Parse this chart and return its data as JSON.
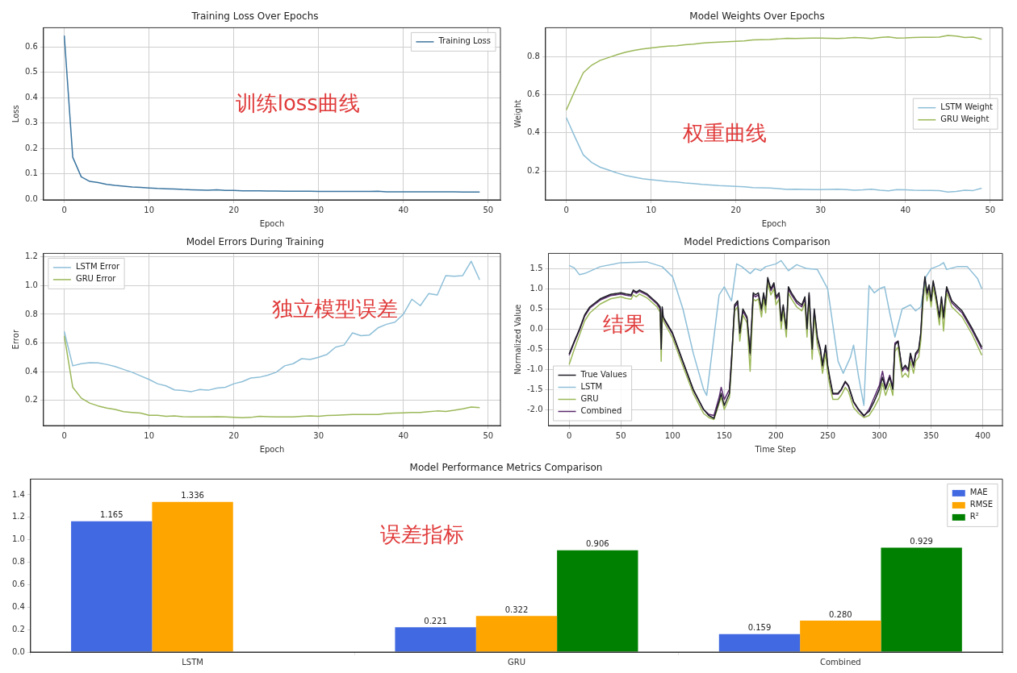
{
  "chart_data": [
    {
      "type": "line",
      "title": "Training Loss Over Epochs",
      "xlabel": "Epoch",
      "ylabel": "Loss",
      "annotations": [
        "训练loss曲线"
      ],
      "grid": true,
      "legend": "top right",
      "x": [
        0,
        1,
        2,
        3,
        4,
        5,
        6,
        7,
        8,
        9,
        10,
        11,
        12,
        13,
        14,
        15,
        16,
        17,
        18,
        19,
        20,
        21,
        22,
        23,
        24,
        25,
        26,
        27,
        28,
        29,
        30,
        31,
        32,
        33,
        34,
        35,
        36,
        37,
        38,
        39,
        40,
        41,
        42,
        43,
        44,
        45,
        46,
        47,
        48,
        49
      ],
      "xlim": [
        -2.45,
        51.45
      ],
      "xticks": [
        0,
        10,
        20,
        30,
        40,
        50
      ],
      "ylim": [
        -0.003,
        0.676
      ],
      "yticks": [
        {
          "value": 0,
          "label": "0.0"
        },
        0.1,
        0.2,
        0.3,
        0.4,
        0.5,
        0.6
      ],
      "series": [
        {
          "name": "Training Loss",
          "color": "#3b75a0",
          "values": [
            0.645,
            0.165,
            0.088,
            0.07,
            0.065,
            0.058,
            0.054,
            0.051,
            0.048,
            0.046,
            0.044,
            0.042,
            0.041,
            0.04,
            0.038,
            0.037,
            0.036,
            0.035,
            0.037,
            0.034,
            0.034,
            0.033,
            0.033,
            0.033,
            0.032,
            0.032,
            0.031,
            0.031,
            0.031,
            0.031,
            0.03,
            0.03,
            0.03,
            0.03,
            0.03,
            0.03,
            0.03,
            0.031,
            0.029,
            0.029,
            0.029,
            0.029,
            0.029,
            0.029,
            0.029,
            0.029,
            0.029,
            0.028,
            0.028,
            0.028
          ]
        }
      ]
    },
    {
      "type": "line",
      "title": "Model Weights Over Epochs",
      "xlabel": "Epoch",
      "ylabel": "Weight",
      "annotations": [
        "权重曲线"
      ],
      "grid": true,
      "legend": "right",
      "x": [
        0,
        1,
        2,
        3,
        4,
        5,
        6,
        7,
        8,
        9,
        10,
        11,
        12,
        13,
        14,
        15,
        16,
        17,
        18,
        19,
        20,
        21,
        22,
        23,
        24,
        25,
        26,
        27,
        28,
        29,
        30,
        31,
        32,
        33,
        34,
        35,
        36,
        37,
        38,
        39,
        40,
        41,
        42,
        43,
        44,
        45,
        46,
        47,
        48,
        49
      ],
      "xlim": [
        -2.45,
        51.45
      ],
      "xticks": [
        0,
        10,
        20,
        30,
        40,
        50
      ],
      "ylim": [
        0.049,
        0.951
      ],
      "yticks": [
        0.2,
        0.4,
        0.6,
        0.8
      ],
      "series": [
        {
          "name": "LSTM Weight",
          "color": "#8ebfd8",
          "values": [
            0.48,
            0.38,
            0.285,
            0.245,
            0.22,
            0.205,
            0.19,
            0.177,
            0.168,
            0.16,
            0.155,
            0.15,
            0.145,
            0.143,
            0.138,
            0.135,
            0.13,
            0.127,
            0.124,
            0.122,
            0.12,
            0.118,
            0.113,
            0.112,
            0.111,
            0.108,
            0.104,
            0.105,
            0.104,
            0.103,
            0.103,
            0.104,
            0.105,
            0.103,
            0.1,
            0.102,
            0.105,
            0.1,
            0.097,
            0.103,
            0.102,
            0.1,
            0.099,
            0.099,
            0.098,
            0.09,
            0.093,
            0.1,
            0.098,
            0.11
          ]
        },
        {
          "name": "GRU Weight",
          "color": "#9bb858",
          "values": [
            0.52,
            0.62,
            0.715,
            0.755,
            0.78,
            0.795,
            0.81,
            0.823,
            0.832,
            0.84,
            0.845,
            0.85,
            0.855,
            0.857,
            0.862,
            0.865,
            0.87,
            0.873,
            0.876,
            0.878,
            0.88,
            0.882,
            0.887,
            0.888,
            0.889,
            0.892,
            0.896,
            0.895,
            0.896,
            0.897,
            0.897,
            0.896,
            0.895,
            0.897,
            0.9,
            0.898,
            0.895,
            0.9,
            0.903,
            0.897,
            0.898,
            0.9,
            0.901,
            0.901,
            0.902,
            0.91,
            0.907,
            0.9,
            0.902,
            0.89
          ]
        }
      ]
    },
    {
      "type": "line",
      "title": "Model Errors During Training",
      "xlabel": "Epoch",
      "ylabel": "Error",
      "annotations": [
        "独立模型误差"
      ],
      "grid": true,
      "legend": "top left",
      "x": [
        0,
        1,
        2,
        3,
        4,
        5,
        6,
        7,
        8,
        9,
        10,
        11,
        12,
        13,
        14,
        15,
        16,
        17,
        18,
        19,
        20,
        21,
        22,
        23,
        24,
        25,
        26,
        27,
        28,
        29,
        30,
        31,
        32,
        33,
        34,
        35,
        36,
        37,
        38,
        39,
        40,
        41,
        42,
        43,
        44,
        45,
        46,
        47,
        48,
        49
      ],
      "xlim": [
        -2.45,
        51.45
      ],
      "xticks": [
        0,
        10,
        20,
        30,
        40,
        50
      ],
      "ylim": [
        0.023,
        1.225
      ],
      "yticks": [
        0.2,
        0.4,
        0.6,
        0.8,
        {
          "value": 1,
          "label": "1.0"
        },
        1.2
      ],
      "series": [
        {
          "name": "LSTM Error",
          "color": "#8ebfd8",
          "values": [
            0.68,
            0.44,
            0.455,
            0.462,
            0.46,
            0.45,
            0.435,
            0.415,
            0.395,
            0.37,
            0.345,
            0.315,
            0.3,
            0.272,
            0.268,
            0.26,
            0.275,
            0.27,
            0.285,
            0.29,
            0.315,
            0.33,
            0.355,
            0.36,
            0.375,
            0.395,
            0.44,
            0.455,
            0.49,
            0.485,
            0.5,
            0.52,
            0.57,
            0.585,
            0.67,
            0.65,
            0.655,
            0.705,
            0.73,
            0.745,
            0.8,
            0.905,
            0.86,
            0.945,
            0.935,
            1.07,
            1.065,
            1.07,
            1.17,
            1.04
          ]
        },
        {
          "name": "GRU Error",
          "color": "#9bb858",
          "values": [
            0.65,
            0.29,
            0.215,
            0.18,
            0.16,
            0.145,
            0.135,
            0.12,
            0.115,
            0.11,
            0.095,
            0.095,
            0.088,
            0.09,
            0.085,
            0.083,
            0.083,
            0.083,
            0.085,
            0.083,
            0.08,
            0.078,
            0.08,
            0.088,
            0.085,
            0.083,
            0.083,
            0.083,
            0.088,
            0.09,
            0.088,
            0.093,
            0.095,
            0.098,
            0.1,
            0.1,
            0.1,
            0.1,
            0.108,
            0.11,
            0.112,
            0.115,
            0.115,
            0.12,
            0.125,
            0.122,
            0.13,
            0.14,
            0.153,
            0.148
          ]
        }
      ]
    },
    {
      "type": "line",
      "title": "Model Predictions Comparison",
      "xlabel": "Time Step",
      "ylabel": "Normalized Value",
      "annotations": [
        "结果"
      ],
      "grid": true,
      "legend": "bottom left",
      "x": [
        0,
        5,
        10,
        15,
        20,
        30,
        40,
        50,
        55,
        60,
        62,
        65,
        68,
        75,
        85,
        88,
        89,
        90,
        91,
        100,
        110,
        120,
        130,
        135,
        140,
        145,
        147,
        150,
        155,
        157,
        160,
        163,
        165,
        168,
        172,
        175,
        178,
        180,
        183,
        186,
        188,
        190,
        192,
        195,
        198,
        200,
        203,
        205,
        207,
        210,
        212,
        215,
        220,
        225,
        228,
        230,
        232,
        235,
        237,
        240,
        243,
        245,
        248,
        250,
        252,
        255,
        260,
        263,
        267,
        270,
        275,
        280,
        285,
        290,
        295,
        300,
        303,
        306,
        310,
        313,
        315,
        318,
        322,
        325,
        328,
        330,
        333,
        335,
        338,
        340,
        342,
        344,
        346,
        348,
        350,
        352,
        355,
        358,
        360,
        362,
        365,
        370,
        380,
        390,
        399
      ],
      "xlim": [
        -20,
        419
      ],
      "xticks": [
        0,
        50,
        100,
        150,
        200,
        250,
        300,
        350,
        400
      ],
      "ylim": [
        -2.4,
        1.88
      ],
      "yticks": [
        {
          "value": -2,
          "label": "-2.0"
        },
        -1.5,
        {
          "value": -1,
          "label": "-1.0"
        },
        -0.5,
        {
          "value": 0,
          "label": "0.0"
        },
        0.5,
        {
          "value": 1,
          "label": "1.0"
        },
        1.5
      ],
      "series": [
        {
          "name": "True Values",
          "color": "#1c1c24",
          "values": [
            -0.62,
            -0.3,
            0.0,
            0.35,
            0.55,
            0.75,
            0.86,
            0.9,
            0.87,
            0.85,
            0.97,
            0.92,
            0.97,
            0.88,
            0.65,
            0.55,
            -0.5,
            0.55,
            0.3,
            -0.1,
            -0.8,
            -1.5,
            -2.0,
            -2.15,
            -2.22,
            -1.8,
            -1.6,
            -1.9,
            -1.6,
            -0.8,
            0.6,
            0.7,
            -0.1,
            0.5,
            0.3,
            -0.6,
            0.9,
            0.85,
            0.9,
            0.5,
            0.9,
            0.6,
            1.28,
            1.0,
            1.15,
            0.8,
            0.9,
            0.2,
            0.6,
            0.0,
            1.05,
            0.9,
            0.7,
            0.6,
            0.8,
            0.0,
            0.9,
            -0.5,
            0.5,
            -0.2,
            -0.5,
            -0.9,
            -0.4,
            -0.9,
            -1.2,
            -1.6,
            -1.6,
            -1.5,
            -1.3,
            -1.4,
            -1.8,
            -2.0,
            -2.15,
            -2.05,
            -1.8,
            -1.5,
            -1.2,
            -1.5,
            -1.2,
            -1.5,
            -0.4,
            -0.3,
            -1.0,
            -0.9,
            -1.0,
            -0.6,
            -0.9,
            -0.6,
            -0.5,
            -0.1,
            0.8,
            1.3,
            0.9,
            1.1,
            0.7,
            1.2,
            0.8,
            0.3,
            0.8,
            0.3,
            1.05,
            0.7,
            0.45,
            0.0,
            -0.45
          ]
        },
        {
          "name": "LSTM",
          "color": "#8ebfd8",
          "x": [
            0,
            5,
            10,
            15,
            30,
            50,
            75,
            90,
            100,
            110,
            120,
            130,
            133,
            140,
            145,
            150,
            157,
            162,
            167,
            175,
            180,
            185,
            190,
            200,
            205,
            212,
            220,
            230,
            240,
            250,
            260,
            265,
            272,
            275,
            280,
            285,
            290,
            295,
            300,
            305,
            310,
            315,
            322,
            330,
            335,
            340,
            345,
            350,
            358,
            362,
            365,
            375,
            385,
            395,
            399
          ],
          "values": [
            1.58,
            1.52,
            1.35,
            1.38,
            1.55,
            1.65,
            1.67,
            1.55,
            1.3,
            0.5,
            -0.6,
            -1.5,
            -1.65,
            -0.2,
            0.85,
            1.05,
            0.7,
            1.62,
            1.55,
            1.38,
            1.5,
            1.45,
            1.55,
            1.62,
            1.7,
            1.45,
            1.6,
            1.5,
            1.48,
            1.0,
            -0.8,
            -1.1,
            -0.7,
            -0.4,
            -1.2,
            -1.9,
            1.08,
            0.9,
            1.0,
            1.05,
            0.4,
            -0.2,
            0.5,
            0.6,
            0.45,
            0.55,
            1.3,
            1.5,
            1.58,
            1.65,
            1.48,
            1.55,
            1.55,
            1.25,
            1.0
          ]
        },
        {
          "name": "GRU",
          "color": "#9bb858",
          "values": [
            -0.88,
            -0.5,
            -0.15,
            0.2,
            0.4,
            0.62,
            0.75,
            0.8,
            0.76,
            0.74,
            0.85,
            0.8,
            0.87,
            0.78,
            0.55,
            0.42,
            -0.8,
            0.42,
            0.2,
            -0.22,
            -0.92,
            -1.6,
            -2.1,
            -2.2,
            -2.25,
            -1.85,
            -1.7,
            -2.0,
            -1.7,
            -0.9,
            0.45,
            0.55,
            -0.3,
            0.35,
            0.15,
            -1.05,
            0.75,
            0.7,
            0.75,
            0.3,
            0.75,
            0.4,
            1.15,
            0.85,
            1.0,
            0.6,
            0.75,
            0.0,
            0.45,
            -0.2,
            0.9,
            0.75,
            0.55,
            0.45,
            0.65,
            -0.2,
            0.75,
            -0.75,
            0.35,
            -0.4,
            -0.7,
            -1.1,
            -0.6,
            -1.1,
            -1.4,
            -1.75,
            -1.75,
            -1.65,
            -1.45,
            -1.55,
            -1.95,
            -2.1,
            -2.2,
            -2.15,
            -1.95,
            -1.7,
            -1.35,
            -1.65,
            -1.35,
            -1.65,
            -0.55,
            -0.45,
            -1.2,
            -1.1,
            -1.2,
            -0.8,
            -1.1,
            -0.8,
            -0.7,
            -0.3,
            0.6,
            1.15,
            0.7,
            0.95,
            0.55,
            1.05,
            0.65,
            0.1,
            0.65,
            -0.05,
            0.9,
            0.55,
            0.3,
            -0.15,
            -0.65
          ]
        },
        {
          "name": "Combined",
          "color": "#5a2a6e",
          "values": [
            -0.65,
            -0.33,
            -0.03,
            0.32,
            0.52,
            0.72,
            0.83,
            0.87,
            0.84,
            0.82,
            0.94,
            0.89,
            0.94,
            0.85,
            0.62,
            0.5,
            -0.45,
            0.5,
            0.27,
            -0.13,
            -0.83,
            -1.52,
            -2.0,
            -2.12,
            -2.15,
            -1.7,
            -1.45,
            -1.75,
            -1.5,
            -0.75,
            0.55,
            0.65,
            -0.15,
            0.45,
            0.25,
            -0.65,
            0.85,
            0.8,
            0.85,
            0.45,
            0.85,
            0.55,
            1.22,
            0.95,
            1.1,
            0.75,
            0.85,
            0.15,
            0.55,
            -0.05,
            1.0,
            0.85,
            0.65,
            0.55,
            0.75,
            -0.05,
            0.85,
            -0.55,
            0.45,
            -0.25,
            -0.55,
            -0.95,
            -0.45,
            -0.95,
            -1.25,
            -1.62,
            -1.62,
            -1.52,
            -1.32,
            -1.42,
            -1.82,
            -2.02,
            -2.17,
            -2.0,
            -1.7,
            -1.4,
            -1.05,
            -1.45,
            -1.15,
            -1.45,
            -0.35,
            -0.3,
            -1.05,
            -0.95,
            -1.05,
            -0.65,
            -0.95,
            -0.65,
            -0.55,
            -0.15,
            0.75,
            1.25,
            0.85,
            1.05,
            0.65,
            1.15,
            0.75,
            0.25,
            0.75,
            0.25,
            1.0,
            0.65,
            0.4,
            -0.05,
            -0.5
          ]
        }
      ]
    },
    {
      "type": "bar",
      "title": "Model Performance Metrics Comparison",
      "annotations": [
        "误差指标"
      ],
      "legend": "top right",
      "categories": [
        "LSTM",
        "GRU",
        "Combined"
      ],
      "ylim": [
        0,
        1.54
      ],
      "yticks": [
        {
          "value": 0,
          "label": "0.0"
        },
        0.2,
        0.4,
        0.6,
        0.8,
        {
          "value": 1,
          "label": "1.0"
        },
        1.2,
        1.4
      ],
      "series": [
        {
          "name": "MAE",
          "color": "#4169e1",
          "values": [
            1.165,
            0.221,
            0.159
          ],
          "value_labels": [
            "1.165",
            "0.221",
            "0.159"
          ]
        },
        {
          "name": "RMSE",
          "color": "#ffa500",
          "values": [
            1.336,
            0.322,
            0.28
          ],
          "value_labels": [
            "1.336",
            "0.322",
            "0.280"
          ]
        },
        {
          "name": "R²",
          "color": "#008000",
          "values": [
            null,
            0.906,
            0.929
          ],
          "value_labels": [
            null,
            "0.906",
            "0.929"
          ]
        }
      ]
    }
  ]
}
